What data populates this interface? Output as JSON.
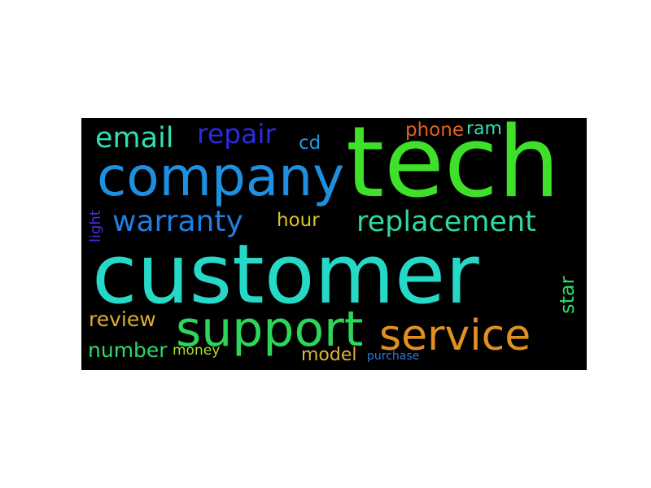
{
  "word_cloud": {
    "background": "#000000",
    "words": [
      {
        "id": "customer",
        "text": "customer",
        "color": "#26d9c7",
        "orientation": "horizontal"
      },
      {
        "id": "tech",
        "text": "tech",
        "color": "#3fe02a",
        "orientation": "horizontal"
      },
      {
        "id": "company",
        "text": "company",
        "color": "#1f8fe0",
        "orientation": "horizontal"
      },
      {
        "id": "support",
        "text": "support",
        "color": "#2bd65a",
        "orientation": "horizontal"
      },
      {
        "id": "service",
        "text": "service",
        "color": "#e0911f",
        "orientation": "horizontal"
      },
      {
        "id": "replacement",
        "text": "replacement",
        "color": "#2fd9a0",
        "orientation": "horizontal"
      },
      {
        "id": "warranty",
        "text": "warranty",
        "color": "#1f7fe0",
        "orientation": "horizontal"
      },
      {
        "id": "email",
        "text": "email",
        "color": "#2ee0b4",
        "orientation": "horizontal"
      },
      {
        "id": "repair",
        "text": "repair",
        "color": "#2a2ae0",
        "orientation": "horizontal"
      },
      {
        "id": "phone",
        "text": "phone",
        "color": "#e0641f",
        "orientation": "horizontal"
      },
      {
        "id": "ram",
        "text": "ram",
        "color": "#2ee0b4",
        "orientation": "horizontal"
      },
      {
        "id": "cd",
        "text": "cd",
        "color": "#1f9ae0",
        "orientation": "horizontal"
      },
      {
        "id": "hour",
        "text": "hour",
        "color": "#d9c42a",
        "orientation": "horizontal"
      },
      {
        "id": "light",
        "text": "light",
        "color": "#4a2ee0",
        "orientation": "vertical"
      },
      {
        "id": "review",
        "text": "review",
        "color": "#d9b02a",
        "orientation": "horizontal"
      },
      {
        "id": "number",
        "text": "number",
        "color": "#2ed96a",
        "orientation": "horizontal"
      },
      {
        "id": "money",
        "text": "money",
        "color": "#a8e02a",
        "orientation": "horizontal"
      },
      {
        "id": "model",
        "text": "model",
        "color": "#e0b43a",
        "orientation": "horizontal"
      },
      {
        "id": "purchase",
        "text": "purchase",
        "color": "#2a7ae0",
        "orientation": "horizontal"
      },
      {
        "id": "star",
        "text": "star",
        "color": "#2ed96a",
        "orientation": "vertical"
      }
    ]
  }
}
